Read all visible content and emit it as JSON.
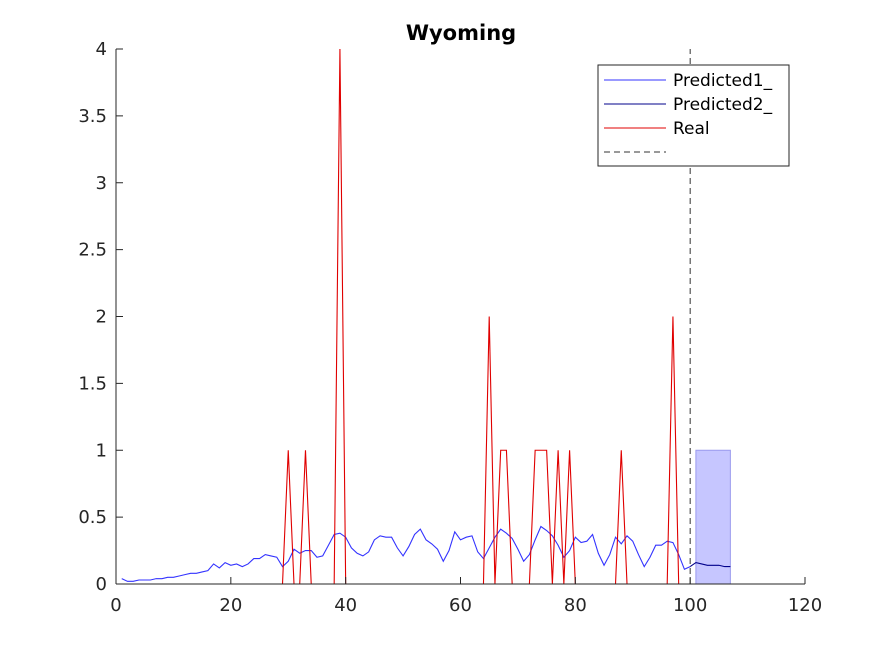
{
  "chart_data": {
    "type": "line",
    "title": "Wyoming",
    "xlabel": "",
    "ylabel": "",
    "xlim": [
      0,
      120
    ],
    "ylim": [
      0,
      4
    ],
    "xticks": [
      0,
      20,
      40,
      60,
      80,
      100,
      120
    ],
    "yticks": [
      0,
      0.5,
      1,
      1.5,
      2,
      2.5,
      3,
      3.5,
      4
    ],
    "xtick_labels": [
      "0",
      "20",
      "40",
      "60",
      "80",
      "100",
      "120"
    ],
    "ytick_labels": [
      "0",
      "0.5",
      "1",
      "1.5",
      "2",
      "2.5",
      "3",
      "3.5",
      "4"
    ],
    "grid": false,
    "legend_position": "top-right",
    "series": [
      {
        "name": "Predicted1_",
        "color": "#3333ff",
        "style": "solid",
        "x": [
          1,
          2,
          3,
          4,
          5,
          6,
          7,
          8,
          9,
          10,
          11,
          12,
          13,
          14,
          15,
          16,
          17,
          18,
          19,
          20,
          21,
          22,
          23,
          24,
          25,
          26,
          27,
          28,
          29,
          30,
          31,
          32,
          33,
          34,
          35,
          36,
          37,
          38,
          39,
          40,
          41,
          42,
          43,
          44,
          45,
          46,
          47,
          48,
          49,
          50,
          51,
          52,
          53,
          54,
          55,
          56,
          57,
          58,
          59,
          60,
          61,
          62,
          63,
          64,
          65,
          66,
          67,
          68,
          69,
          70,
          71,
          72,
          73,
          74,
          75,
          76,
          77,
          78,
          79,
          80,
          81,
          82,
          83,
          84,
          85,
          86,
          87,
          88,
          89,
          90,
          91,
          92,
          93,
          94,
          95,
          96,
          97,
          98,
          99,
          100
        ],
        "y": [
          0.04,
          0.02,
          0.02,
          0.03,
          0.03,
          0.03,
          0.04,
          0.04,
          0.05,
          0.05,
          0.06,
          0.07,
          0.08,
          0.08,
          0.09,
          0.1,
          0.15,
          0.12,
          0.16,
          0.14,
          0.15,
          0.13,
          0.15,
          0.19,
          0.19,
          0.22,
          0.21,
          0.2,
          0.13,
          0.17,
          0.26,
          0.23,
          0.25,
          0.25,
          0.2,
          0.21,
          0.29,
          0.37,
          0.38,
          0.35,
          0.27,
          0.23,
          0.21,
          0.24,
          0.33,
          0.36,
          0.35,
          0.35,
          0.27,
          0.21,
          0.28,
          0.37,
          0.41,
          0.33,
          0.3,
          0.26,
          0.17,
          0.25,
          0.39,
          0.33,
          0.35,
          0.36,
          0.24,
          0.19,
          0.27,
          0.35,
          0.41,
          0.38,
          0.34,
          0.26,
          0.17,
          0.22,
          0.33,
          0.43,
          0.4,
          0.36,
          0.29,
          0.2,
          0.25,
          0.35,
          0.31,
          0.32,
          0.37,
          0.23,
          0.14,
          0.22,
          0.35,
          0.3,
          0.36,
          0.32,
          0.22,
          0.13,
          0.2,
          0.29,
          0.29,
          0.32,
          0.31,
          0.22,
          0.11,
          0.13
        ]
      },
      {
        "name": "Predicted2_",
        "color": "#00008b",
        "style": "solid",
        "x": [
          100,
          101,
          102,
          103,
          104,
          105,
          106,
          107
        ],
        "y": [
          0.13,
          0.16,
          0.15,
          0.14,
          0.14,
          0.14,
          0.13,
          0.13
        ]
      },
      {
        "name": "Real",
        "color": "#e00000",
        "style": "solid",
        "x": [
          0,
          28,
          29,
          30,
          31,
          32,
          33,
          34,
          35,
          36,
          37,
          38,
          39,
          40,
          41,
          62,
          63,
          64,
          65,
          66,
          67,
          68,
          69,
          70,
          71,
          72,
          73,
          74,
          75,
          76,
          77,
          78,
          79,
          80,
          81,
          86,
          87,
          88,
          89,
          90,
          95,
          96,
          97,
          98,
          99,
          107
        ],
        "y": [
          0,
          0,
          0,
          1,
          0,
          0,
          1,
          0,
          0,
          0,
          0,
          0,
          4,
          0,
          0,
          0,
          0,
          0,
          2,
          0,
          1,
          1,
          0,
          0,
          0,
          0,
          1,
          1,
          1,
          0,
          1,
          0,
          1,
          0,
          0,
          0,
          0,
          1,
          0,
          0,
          0,
          0,
          2,
          0,
          0,
          0
        ]
      },
      {
        "name": "",
        "color": "#333333",
        "style": "dashed",
        "x": [
          100,
          100
        ],
        "y": [
          0,
          4
        ]
      }
    ],
    "shaded_region": {
      "x": [
        101,
        107
      ],
      "y": [
        0,
        1
      ],
      "color": "#b3b3ff"
    }
  }
}
